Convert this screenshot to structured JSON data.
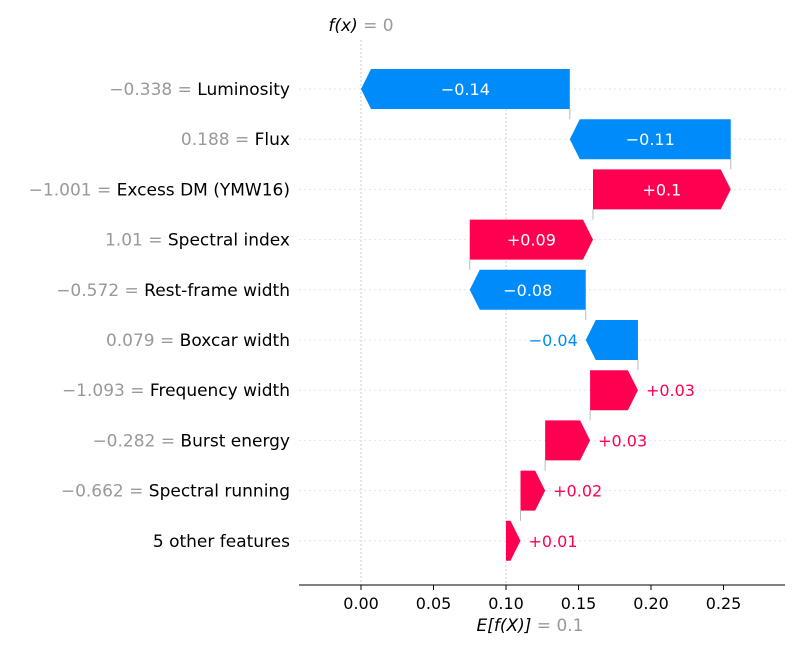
{
  "chart_data": {
    "type": "waterfall",
    "base_value": 0.1,
    "output_value": 0,
    "top_label": {
      "symbol": "f(x)",
      "eq": " = ",
      "value": "0"
    },
    "bottom_label": {
      "symbol": "E[f(X)]",
      "eq": " = ",
      "value": "0.1"
    },
    "xlim": [
      -0.042,
      0.294
    ],
    "xticks": [
      0.0,
      0.05,
      0.1,
      0.15,
      0.2,
      0.25
    ],
    "xtick_labels": [
      "0.00",
      "0.05",
      "0.10",
      "0.15",
      "0.20",
      "0.25"
    ],
    "features": [
      {
        "value_text": "−0.338",
        "name": "Luminosity",
        "contribution": -0.144,
        "label": "−0.14"
      },
      {
        "value_text": "0.188",
        "name": "Flux",
        "contribution": -0.111,
        "label": "−0.11"
      },
      {
        "value_text": "−1.001",
        "name": "Excess DM (YMW16)",
        "contribution": 0.095,
        "label": "+0.1"
      },
      {
        "value_text": "1.01",
        "name": "Spectral index",
        "contribution": 0.085,
        "label": "+0.09"
      },
      {
        "value_text": "−0.572",
        "name": "Rest-frame width",
        "contribution": -0.08,
        "label": "−0.08"
      },
      {
        "value_text": "0.079",
        "name": "Boxcar width",
        "contribution": -0.036,
        "label": "−0.04"
      },
      {
        "value_text": "−1.093",
        "name": "Frequency width",
        "contribution": 0.033,
        "label": "+0.03"
      },
      {
        "value_text": "−0.282",
        "name": "Burst energy",
        "contribution": 0.031,
        "label": "+0.03"
      },
      {
        "value_text": "−0.662",
        "name": "Spectral running",
        "contribution": 0.017,
        "label": "+0.02"
      },
      {
        "value_text": "",
        "name": "5 other features",
        "contribution": 0.01,
        "label": "+0.01"
      }
    ],
    "colors": {
      "positive": "#ff0051",
      "negative": "#008bfb",
      "value_gray": "#999999",
      "grid": "#cccccc"
    }
  }
}
